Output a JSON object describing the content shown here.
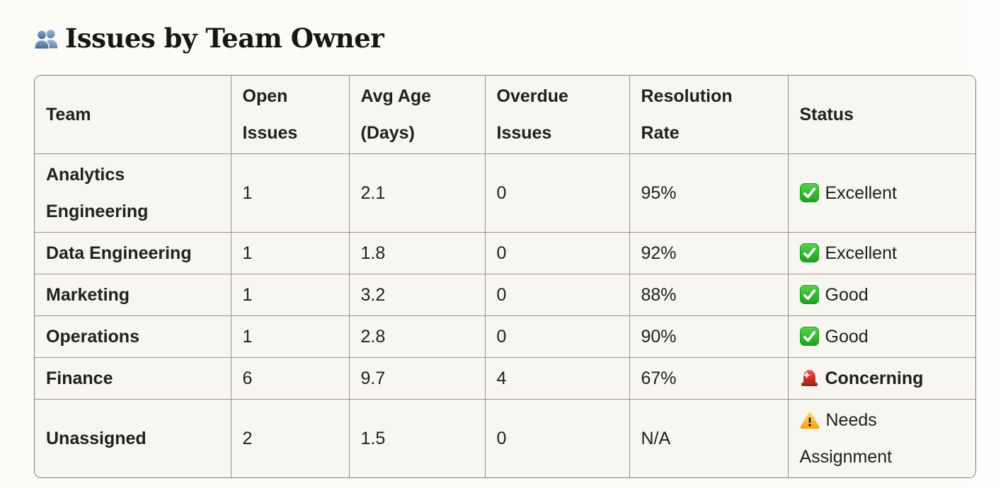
{
  "title": {
    "icon": "users",
    "text": "Issues by Team Owner"
  },
  "table": {
    "headers": {
      "team": "Team",
      "open_issues": "Open Issues",
      "avg_age_days": "Avg Age (Days)",
      "overdue_issues": "Overdue Issues",
      "resolution_rate": "Resolution Rate",
      "status": "Status"
    },
    "rows": [
      {
        "team": "Analytics Engineering",
        "open_issues": "1",
        "avg_age_days": "2.1",
        "overdue_issues": "0",
        "resolution_rate": "95%",
        "status": {
          "icon": "check-mark",
          "label": "Excellent",
          "emphasis": false
        }
      },
      {
        "team": "Data Engineering",
        "open_issues": "1",
        "avg_age_days": "1.8",
        "overdue_issues": "0",
        "resolution_rate": "92%",
        "status": {
          "icon": "check-mark",
          "label": "Excellent",
          "emphasis": false
        }
      },
      {
        "team": "Marketing",
        "open_issues": "1",
        "avg_age_days": "3.2",
        "overdue_issues": "0",
        "resolution_rate": "88%",
        "status": {
          "icon": "check-mark",
          "label": "Good",
          "emphasis": false
        }
      },
      {
        "team": "Operations",
        "open_issues": "1",
        "avg_age_days": "2.8",
        "overdue_issues": "0",
        "resolution_rate": "90%",
        "status": {
          "icon": "check-mark",
          "label": "Good",
          "emphasis": false
        }
      },
      {
        "team": "Finance",
        "open_issues": "6",
        "avg_age_days": "9.7",
        "overdue_issues": "4",
        "resolution_rate": "67%",
        "status": {
          "icon": "siren",
          "label": "Concerning",
          "emphasis": true
        }
      },
      {
        "team": "Unassigned",
        "open_issues": "2",
        "avg_age_days": "1.5",
        "overdue_issues": "0",
        "resolution_rate": "N/A",
        "status": {
          "icon": "warning",
          "label": "Needs Assignment",
          "emphasis": false
        }
      }
    ]
  },
  "colors": {
    "page_background": "#FCFBF8",
    "cell_background": "#F8F6F0",
    "border": "#96948D",
    "text": "#21201E",
    "check_green": "#2BB32B",
    "siren_red": "#D2392B",
    "warning_yellow": "#F9B02A",
    "users_blue": "#5B84AC"
  }
}
